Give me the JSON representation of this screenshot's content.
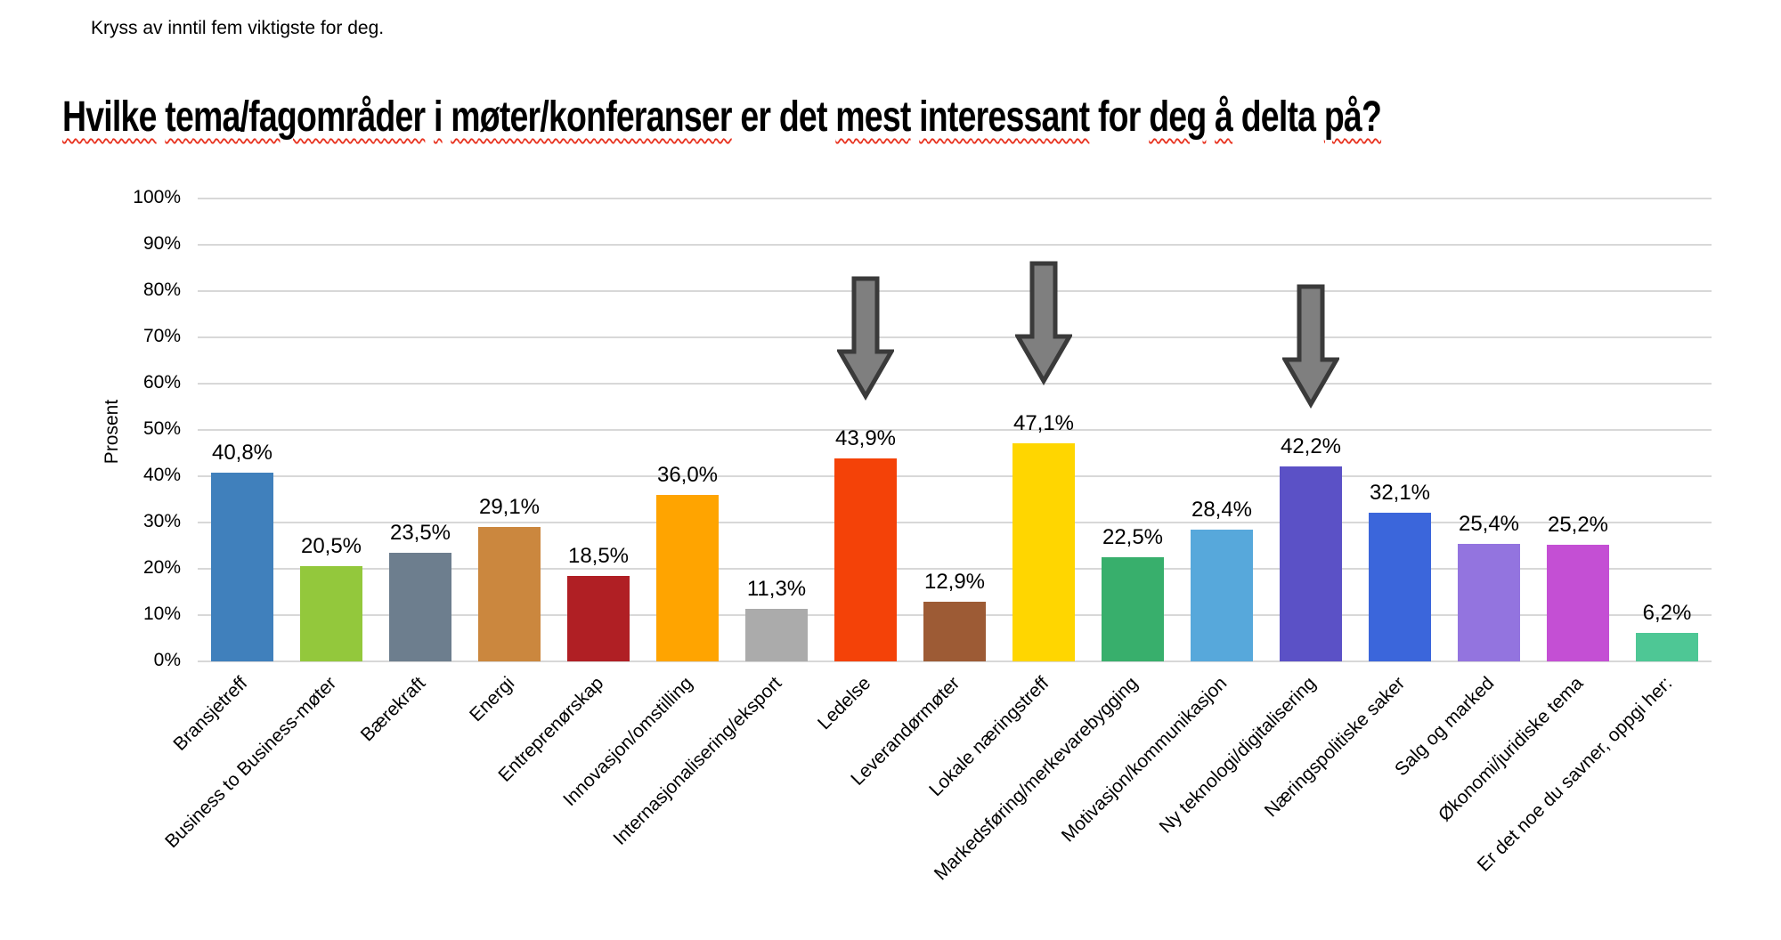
{
  "page": {
    "instruction": "Kryss av inntil fem viktigste for deg.",
    "title_segments": [
      {
        "text": "Hvilke",
        "squiggle": true
      },
      {
        "text": "tema/fagområder",
        "squiggle": true
      },
      {
        "text": "i",
        "squiggle": true
      },
      {
        "text": "møter/konferanser",
        "squiggle": true
      },
      {
        "text": "er",
        "squiggle": false
      },
      {
        "text": "det",
        "squiggle": false
      },
      {
        "text": "mest",
        "squiggle": true
      },
      {
        "text": "interessant",
        "squiggle": true
      },
      {
        "text": "for",
        "squiggle": false
      },
      {
        "text": "deg",
        "squiggle": true
      },
      {
        "text": "å",
        "squiggle": true
      },
      {
        "text": "delta",
        "squiggle": false
      },
      {
        "text": "på?",
        "squiggle": true
      }
    ],
    "squiggle_color": "#E8321F"
  },
  "chart_data": {
    "type": "bar",
    "title": "Hvilke tema/fagområder i møter/konferanser er det mest interessant for deg å delta på?",
    "xlabel": "",
    "ylabel": "Prosent",
    "ylim": [
      0,
      100
    ],
    "yticks": [
      0,
      10,
      20,
      30,
      40,
      50,
      60,
      70,
      80,
      90,
      100
    ],
    "ytick_labels": [
      "0%",
      "10%",
      "20%",
      "30%",
      "40%",
      "50%",
      "60%",
      "70%",
      "80%",
      "90%",
      "100%"
    ],
    "grid": true,
    "legend_position": "none",
    "categories": [
      "Bransjetreff",
      "Business to Business-møter",
      "Bærekraft",
      "Energi",
      "Entreprenørskap",
      "Innovasjon/omstilling",
      "Internasjonalisering/eksport",
      "Ledelse",
      "Leverandørmøter",
      "Lokale næringstreff",
      "Markedsføring/merkevarebygging",
      "Motivasjon/kommunikasjon",
      "Ny teknologi/digitalisering",
      "Næringspolitiske saker",
      "Salg og marked",
      "Økonomi/juridiske tema",
      "Er det noe du savner, oppgi her:"
    ],
    "values": [
      40.8,
      20.5,
      23.5,
      29.1,
      18.5,
      36.0,
      11.3,
      43.9,
      12.9,
      47.1,
      22.5,
      28.4,
      42.2,
      32.1,
      25.4,
      25.2,
      6.2
    ],
    "value_labels": [
      "40,8%",
      "20,5%",
      "23,5%",
      "29,1%",
      "18,5%",
      "36,0%",
      "11,3%",
      "43,9%",
      "12,9%",
      "47,1%",
      "22,5%",
      "28,4%",
      "42,2%",
      "32,1%",
      "25,4%",
      "25,2%",
      "6,2%"
    ],
    "bar_colors": [
      "#4080BC",
      "#93C83C",
      "#6D7E8E",
      "#CB873E",
      "#B01F24",
      "#FFA400",
      "#ABABAB",
      "#F44208",
      "#9D5B35",
      "#FFD600",
      "#38AF6C",
      "#57A8DB",
      "#5B51C6",
      "#3B66DB",
      "#9374DF",
      "#C44FD4",
      "#4EC795"
    ],
    "gridline_color": "#D8D8D8",
    "annotations": {
      "shape": "down-arrow",
      "fill": "#7F7F7F",
      "stroke": "#3A3A3A",
      "targets": [
        "Ledelse",
        "Lokale næringstreff",
        "Ny teknologi/digitalisering"
      ]
    }
  }
}
